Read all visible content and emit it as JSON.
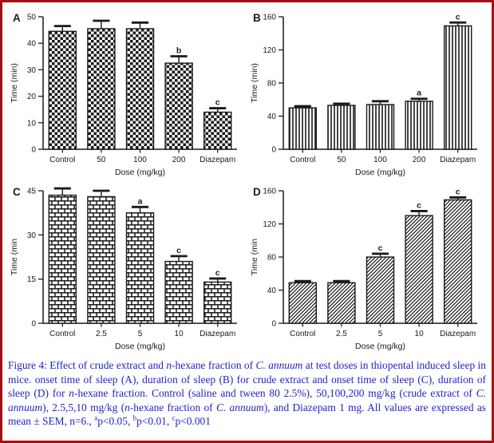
{
  "figure": {
    "border_color": "#A31212",
    "caption_color": "#2121CC",
    "ink_color": "#1a1a1a",
    "background": "#ffffff"
  },
  "caption": {
    "segments": [
      {
        "t": "Figure 4:  Effect of crude extract and "
      },
      {
        "t": "n",
        "i": true
      },
      {
        "t": "-hexane fraction of "
      },
      {
        "t": "C. annuum",
        "i": true
      },
      {
        "t": " at test doses in thiopental induced sleep in mice. onset time of sleep (A), duration of sleep (B) for crude extract and onset time of sleep (C), duration of sleep (D) for "
      },
      {
        "t": "n",
        "i": true
      },
      {
        "t": "-hexane fraction. Control (saline and  tween 80 2.5%), 50,100,200 mg/kg (crude extract of "
      },
      {
        "t": "C. annuum",
        "i": true
      },
      {
        "t": "), 2.5,5,10 mg/kg ("
      },
      {
        "t": "n",
        "i": true
      },
      {
        "t": "-hexane fraction of "
      },
      {
        "t": "C. annuum",
        "i": true
      },
      {
        "t": "), and Diazepam 1 mg. All values are expressed as mean ± SEM, n=6., "
      },
      {
        "t": "a",
        "sup": true
      },
      {
        "t": "p<0.05, "
      },
      {
        "t": "b",
        "sup": true
      },
      {
        "t": "p<0.01, "
      },
      {
        "t": "c",
        "sup": true
      },
      {
        "t": "p<0.001"
      }
    ]
  },
  "chart_data": [
    {
      "panel": "A",
      "type": "bar",
      "pattern": "checker",
      "categories": [
        "Control",
        "50",
        "100",
        "200",
        "Diazepam"
      ],
      "values": [
        44.5,
        45.5,
        45.5,
        32.5,
        14
      ],
      "errors": [
        2,
        3,
        2.3,
        2.6,
        1.5
      ],
      "sig_labels": [
        "",
        "",
        "",
        "b",
        "c"
      ],
      "title": "",
      "xlabel": "Dose (mg/kg)",
      "ylabel": "Time (min)",
      "ylim": [
        0,
        50
      ],
      "yticks": [
        0,
        10,
        20,
        30,
        40,
        50
      ],
      "grid": false,
      "legend": false
    },
    {
      "panel": "B",
      "type": "bar",
      "pattern": "vlines",
      "categories": [
        "Control",
        "50",
        "100",
        "200",
        "Diazepam"
      ],
      "values": [
        50,
        53,
        54,
        58,
        149
      ],
      "errors": [
        2,
        2,
        4,
        3,
        4
      ],
      "sig_labels": [
        "",
        "",
        "",
        "a",
        "c"
      ],
      "title": "",
      "xlabel": "Dose (mg/kg)",
      "ylabel": "Time (min)",
      "ylim": [
        0,
        160
      ],
      "yticks": [
        0,
        40,
        80,
        120,
        160
      ],
      "grid": false,
      "legend": false
    },
    {
      "panel": "C",
      "type": "bar",
      "pattern": "brick",
      "categories": [
        "Control",
        "2.5",
        "5",
        "10",
        "Diazepam"
      ],
      "values": [
        43.5,
        43,
        37.5,
        21,
        14
      ],
      "errors": [
        2.3,
        2,
        2,
        1.8,
        1.2
      ],
      "sig_labels": [
        "",
        "",
        "a",
        "c",
        "c"
      ],
      "title": "",
      "xlabel": "Dose (mg/kg)",
      "ylabel": "Time (min",
      "ylim": [
        0,
        45
      ],
      "yticks": [
        0,
        15,
        30,
        45
      ],
      "grid": false,
      "legend": false
    },
    {
      "panel": "D",
      "type": "bar",
      "pattern": "diag",
      "categories": [
        "Control",
        "2.5",
        "5",
        "10",
        "Diazepam"
      ],
      "values": [
        49,
        49,
        80,
        130,
        149
      ],
      "errors": [
        2,
        2,
        4,
        5.5,
        3
      ],
      "sig_labels": [
        "",
        "",
        "c",
        "c",
        "c"
      ],
      "title": "",
      "xlabel": "Dose (mg/kg)",
      "ylabel": "Time (min",
      "ylim": [
        0,
        160
      ],
      "yticks": [
        0,
        40,
        80,
        120,
        160
      ],
      "grid": false,
      "legend": false
    }
  ]
}
